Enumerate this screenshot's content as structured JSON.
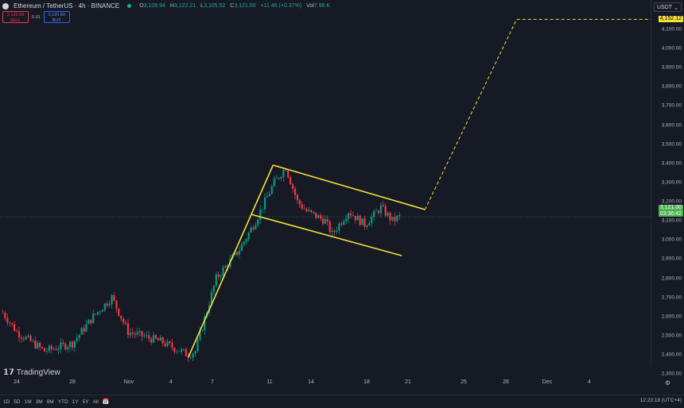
{
  "header": {
    "symbol": "Ethereum / TetherUS · 4h · BINANCE",
    "open": "3,109.94",
    "high": "3,122.21",
    "low": "3,105.52",
    "close": "3,121.00",
    "change": "+11.46 (+0.37%)",
    "volume": "7.96 K"
  },
  "trade": {
    "sell_price": "3,120.59",
    "sell_label": "SELL",
    "spread": "0.01",
    "buy_price": "3,120.60",
    "buy_label": "BUY"
  },
  "currency": "USDT",
  "price_axis": {
    "ticks": [
      "4,100.00",
      "4,000.00",
      "3,900.00",
      "3,800.00",
      "3,700.00",
      "3,600.00",
      "3,500.00",
      "3,400.00",
      "3,300.00",
      "3,200.00",
      "3,100.00",
      "3,000.00",
      "2,900.00",
      "2,800.00",
      "2,700.00",
      "2,600.00",
      "2,500.00",
      "2,400.00",
      "2,300.00"
    ],
    "target_label": "4,152.12",
    "last_price": "3,121.00",
    "countdown": "03:36:42"
  },
  "time_axis": {
    "ticks": [
      "24",
      "28",
      "Nov",
      "4",
      "7",
      "11",
      "14",
      "18",
      "21",
      "25",
      "28",
      "Dec",
      "4"
    ]
  },
  "colors": {
    "up": "#089981",
    "down": "#f23645",
    "drawing": "#f5e13a",
    "last": "#4caf50",
    "background": "#161a25"
  },
  "price_path": [
    [
      "Oct 23 00:00",
      2620
    ],
    [
      "Oct 24 00:00",
      2520
    ],
    [
      "Oct 26 00:00",
      2420
    ],
    [
      "Oct 28 00:00",
      2460
    ],
    [
      "Oct 29 12:00",
      2600
    ],
    [
      "Oct 30 20:00",
      2700
    ],
    [
      "Nov 1 00:00",
      2520
    ],
    [
      "Nov 3 08:00",
      2470
    ],
    [
      "Nov 5 08:00",
      2400
    ],
    [
      "Nov 5 20:00",
      2420
    ],
    [
      "Nov 7 08:00",
      2800
    ],
    [
      "Nov 9 00:00",
      2950
    ],
    [
      "Nov 10 04:00",
      3100
    ],
    [
      "Nov 11 12:00",
      3300
    ],
    [
      "Nov 12 08:00",
      3380
    ],
    [
      "Nov 13 04:00",
      3200
    ],
    [
      "Nov 13 20:00",
      3150
    ],
    [
      "Nov 15 04:00",
      3100
    ],
    [
      "Nov 15 16:00",
      3030
    ],
    [
      "Nov 16 20:00",
      3150
    ],
    [
      "Nov 18 00:00",
      3080
    ],
    [
      "Nov 19 04:00",
      3170
    ],
    [
      "Nov 20 00:00",
      3100
    ],
    [
      "Nov 20 12:00",
      3121
    ]
  ],
  "drawings": {
    "pole": [
      [
        "Nov 5 08:00",
        2388
      ],
      [
        "Nov 11 10:00",
        3391
      ]
    ],
    "flag_upper": [
      [
        "Nov 11 10:00",
        3391
      ],
      [
        "Nov 22 08:00",
        3159
      ]
    ],
    "flag_lower": [
      [
        "Nov 9 20:00",
        3134
      ],
      [
        "Nov 20 16:00",
        2918
      ]
    ],
    "projection": [
      [
        "Nov 22 08:00",
        3159
      ],
      [
        "Nov 28 22:00",
        4152.12
      ],
      [
        "Dec 11 00:00",
        4152.12
      ]
    ]
  },
  "timeframes": [
    "1D",
    "5D",
    "1M",
    "3M",
    "6M",
    "YTD",
    "1Y",
    "5Y",
    "All"
  ],
  "clock": "12:23:18 (UTC+4)",
  "logo": "TradingView"
}
